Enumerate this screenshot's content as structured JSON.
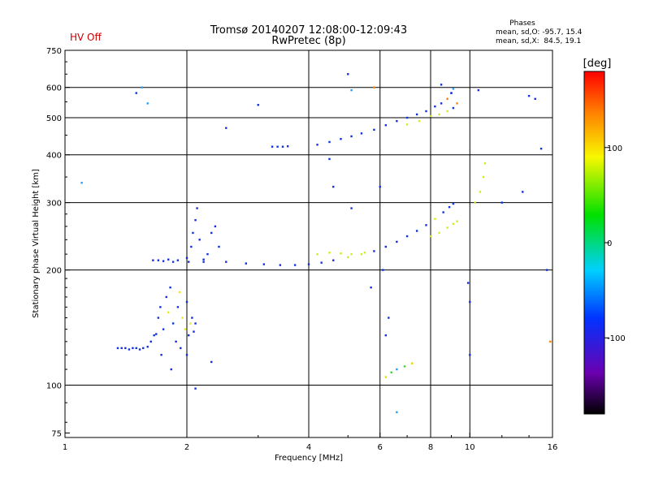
{
  "chart_data": {
    "type": "scatter",
    "title": "Tromsø 20140207 12:08:00-12:09:43",
    "subtitle": "RwPretec (8p)",
    "status_text": "HV Off",
    "xlabel": "Frequency [MHz]",
    "ylabel": "Stationary phase Virtual Height [km]",
    "x_scale": "log",
    "y_scale": "log",
    "xlim": [
      1,
      16
    ],
    "ylim": [
      73,
      750
    ],
    "x_ticks": [
      1,
      2,
      4,
      6,
      8,
      10,
      16
    ],
    "y_ticks": [
      75,
      100,
      200,
      300,
      400,
      500,
      600,
      750
    ],
    "grid": true,
    "phase_info": {
      "title": "Phases",
      "line1": "mean, sd,O: -95.7, 15.4",
      "line2": "mean, sd,X:  84.5, 19.1"
    },
    "colorbar": {
      "label": "[deg]",
      "range": [
        -180,
        180
      ],
      "ticks": [
        100,
        0,
        -100
      ]
    },
    "points": [
      [
        1.5,
        580
      ],
      [
        1.55,
        600
      ],
      [
        1.6,
        545
      ],
      [
        1.1,
        338
      ],
      [
        2.5,
        470
      ],
      [
        3.0,
        540
      ],
      [
        5.0,
        650
      ],
      [
        5.1,
        590
      ],
      [
        5.8,
        600
      ],
      [
        8.5,
        610
      ],
      [
        9.0,
        580
      ],
      [
        10.5,
        590
      ],
      [
        14,
        570
      ],
      [
        14.5,
        560
      ],
      [
        1.35,
        125
      ],
      [
        1.38,
        125
      ],
      [
        1.41,
        125
      ],
      [
        1.44,
        124
      ],
      [
        1.47,
        125
      ],
      [
        1.5,
        125
      ],
      [
        1.53,
        124
      ],
      [
        1.56,
        125
      ],
      [
        1.6,
        126
      ],
      [
        1.63,
        130
      ],
      [
        1.66,
        135
      ],
      [
        1.68,
        136
      ],
      [
        1.7,
        150
      ],
      [
        1.72,
        160
      ],
      [
        1.75,
        140
      ],
      [
        1.78,
        170
      ],
      [
        1.8,
        155
      ],
      [
        1.82,
        180
      ],
      [
        1.85,
        145
      ],
      [
        1.88,
        130
      ],
      [
        1.9,
        160
      ],
      [
        1.92,
        175
      ],
      [
        1.95,
        150
      ],
      [
        1.98,
        140
      ],
      [
        2.0,
        165
      ],
      [
        2.02,
        135
      ],
      [
        2.04,
        145
      ],
      [
        2.06,
        150
      ],
      [
        2.08,
        138
      ],
      [
        2.1,
        145
      ],
      [
        1.73,
        120
      ],
      [
        1.83,
        110
      ],
      [
        1.93,
        125
      ],
      [
        2.0,
        120
      ],
      [
        2.02,
        210
      ],
      [
        2.05,
        230
      ],
      [
        2.07,
        250
      ],
      [
        2.1,
        270
      ],
      [
        2.12,
        290
      ],
      [
        2.15,
        240
      ],
      [
        2.2,
        210
      ],
      [
        2.25,
        220
      ],
      [
        2.3,
        250
      ],
      [
        2.35,
        260
      ],
      [
        2.4,
        230
      ],
      [
        1.65,
        212
      ],
      [
        1.7,
        212
      ],
      [
        1.75,
        211
      ],
      [
        1.8,
        213
      ],
      [
        1.85,
        210
      ],
      [
        1.9,
        212
      ],
      [
        2.0,
        215
      ],
      [
        2.2,
        213
      ],
      [
        2.5,
        210
      ],
      [
        2.8,
        208
      ],
      [
        3.1,
        207
      ],
      [
        3.4,
        206
      ],
      [
        3.7,
        206
      ],
      [
        4.0,
        207
      ],
      [
        4.3,
        209
      ],
      [
        4.6,
        212
      ],
      [
        5.0,
        216
      ],
      [
        5.4,
        220
      ],
      [
        5.8,
        224
      ],
      [
        6.2,
        230
      ],
      [
        6.6,
        237
      ],
      [
        7.0,
        245
      ],
      [
        7.4,
        253
      ],
      [
        7.8,
        262
      ],
      [
        8.2,
        272
      ],
      [
        8.6,
        283
      ],
      [
        8.9,
        292
      ],
      [
        9.1,
        298
      ],
      [
        4.2,
        220
      ],
      [
        4.5,
        222
      ],
      [
        4.8,
        221
      ],
      [
        5.1,
        220
      ],
      [
        5.5,
        222
      ],
      [
        8.0,
        245
      ],
      [
        8.4,
        250
      ],
      [
        8.8,
        258
      ],
      [
        9.1,
        264
      ],
      [
        9.3,
        268
      ],
      [
        10.3,
        300
      ],
      [
        10.6,
        320
      ],
      [
        10.8,
        350
      ],
      [
        10.9,
        380
      ],
      [
        3.25,
        420
      ],
      [
        3.35,
        420
      ],
      [
        3.45,
        420
      ],
      [
        3.55,
        421
      ],
      [
        4.2,
        425
      ],
      [
        4.5,
        432
      ],
      [
        4.8,
        440
      ],
      [
        5.1,
        447
      ],
      [
        5.4,
        455
      ],
      [
        5.8,
        465
      ],
      [
        6.2,
        478
      ],
      [
        6.6,
        490
      ],
      [
        7.0,
        500
      ],
      [
        7.4,
        510
      ],
      [
        7.8,
        520
      ],
      [
        8.2,
        535
      ],
      [
        8.5,
        545
      ],
      [
        8.8,
        560
      ],
      [
        9.0,
        580
      ],
      [
        9.1,
        595
      ],
      [
        7.0,
        480
      ],
      [
        7.5,
        490
      ],
      [
        8.0,
        505
      ],
      [
        8.4,
        510
      ],
      [
        8.8,
        520
      ],
      [
        9.1,
        530
      ],
      [
        9.3,
        545
      ],
      [
        6.2,
        105
      ],
      [
        6.4,
        108
      ],
      [
        6.6,
        110
      ],
      [
        6.9,
        112
      ],
      [
        7.2,
        114
      ],
      [
        6.2,
        135
      ],
      [
        6.3,
        150
      ],
      [
        6.6,
        85
      ],
      [
        9.9,
        185
      ],
      [
        10.0,
        165
      ],
      [
        10.0,
        120
      ],
      [
        5.7,
        180
      ],
      [
        6.1,
        200
      ],
      [
        4.6,
        330
      ],
      [
        5.1,
        290
      ],
      [
        6.0,
        330
      ],
      [
        4.5,
        390
      ],
      [
        12.0,
        300
      ],
      [
        13.5,
        320
      ],
      [
        15,
        415
      ],
      [
        15.5,
        200
      ],
      [
        15.8,
        130
      ],
      [
        2.1,
        98
      ],
      [
        2.3,
        115
      ]
    ]
  }
}
